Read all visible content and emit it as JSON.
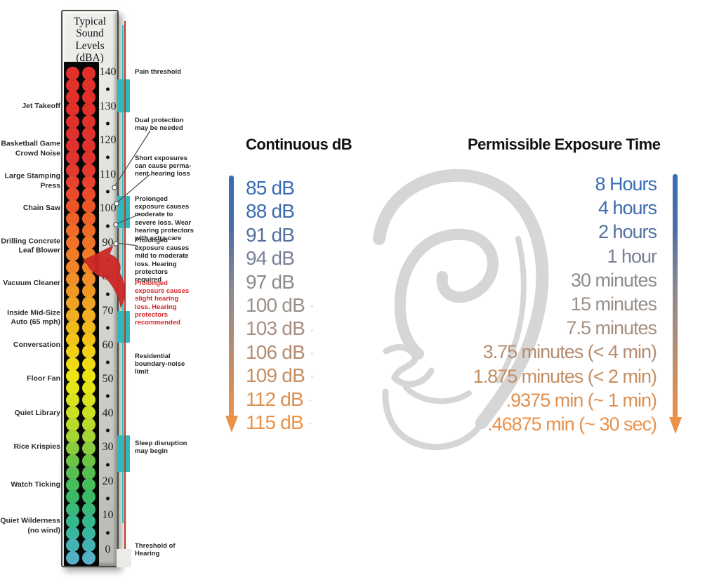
{
  "page_background": "#ffffff",
  "thermometer": {
    "title_lines": [
      "Typical",
      "Sound",
      "Levels",
      "(dBA)"
    ],
    "scale_max": 140,
    "scale_min": 0,
    "scale_step": 10,
    "tick_labels": [
      "140",
      "130",
      "120",
      "110",
      "100",
      "90",
      "80",
      "70",
      "60",
      "50",
      "40",
      "30",
      "20",
      "10",
      "0"
    ],
    "left_labels": [
      {
        "text": "Jet Takeoff",
        "db": 130
      },
      {
        "text": "Basketball Game Crowd Noise",
        "db": 117.5
      },
      {
        "text": "Large Stamping Press",
        "db": 108
      },
      {
        "text": "Chain Saw",
        "db": 100
      },
      {
        "text": "Drilling Concrete Leaf Blower",
        "db": 89
      },
      {
        "text": "Vacuum Cleaner",
        "db": 78
      },
      {
        "text": "Inside Mid-Size Auto (65 mph)",
        "db": 68
      },
      {
        "text": "Conversation",
        "db": 60
      },
      {
        "text": "Floor Fan",
        "db": 50
      },
      {
        "text": "Quiet Library",
        "db": 40
      },
      {
        "text": "Rice Krispies",
        "db": 30
      },
      {
        "text": "Watch Ticking",
        "db": 19
      },
      {
        "text": "Quiet Wilderness (no wind)",
        "db": 7
      }
    ],
    "annotations": [
      {
        "text": "Pain threshold",
        "color": "#262626"
      },
      {
        "text": "Dual protection may be needed",
        "color": "#262626"
      },
      {
        "text": "Short exposures can cause perma-nent hearing loss",
        "color": "#262626"
      },
      {
        "text": "Prolonged exposure causes moderate to severe loss. Wear hearing protectors with extra care",
        "color": "#262626"
      },
      {
        "text": "Prolonged exposure causes mild to moderate loss. Hearing protectors required",
        "color": "#262626"
      },
      {
        "text": "Prolonged exposure causes slight hearing loss. Hearing protectors recommended",
        "color": "#d8262b"
      },
      {
        "text": "Residential boundary-noise limit",
        "color": "#262626"
      },
      {
        "text": "Sleep disruption may begin",
        "color": "#262626"
      },
      {
        "text": "Threshold of Hearing",
        "color": "#262626"
      }
    ],
    "dot_gradient_stops": [
      [
        0.0,
        "#e23029"
      ],
      [
        0.17,
        "#e03130"
      ],
      [
        0.24,
        "#e8472c"
      ],
      [
        0.32,
        "#ee6a26"
      ],
      [
        0.4,
        "#f08428"
      ],
      [
        0.47,
        "#f0a024"
      ],
      [
        0.53,
        "#f2bb1c"
      ],
      [
        0.58,
        "#f2d214"
      ],
      [
        0.63,
        "#eee612"
      ],
      [
        0.69,
        "#d2e220"
      ],
      [
        0.75,
        "#a6d434"
      ],
      [
        0.81,
        "#60c149"
      ],
      [
        0.87,
        "#3ab964"
      ],
      [
        0.93,
        "#35b88e"
      ],
      [
        0.97,
        "#3fb3ae"
      ],
      [
        1.0,
        "#55b0c6"
      ]
    ],
    "marker_color": "#2fb9bd",
    "line_teal": "#2fb9bd",
    "line_red": "#c0392f",
    "pointer_arrow_color": "#ce2727"
  },
  "continuous": {
    "heading": "Continuous dB",
    "rows": [
      {
        "label": "85 dB",
        "color": "#3a6db6",
        "dot": false
      },
      {
        "label": "88 dB",
        "color": "#3e6cad",
        "dot": false
      },
      {
        "label": "91 dB",
        "color": "#54719f",
        "dot": false
      },
      {
        "label": "94 dB",
        "color": "#7a8097",
        "dot": false
      },
      {
        "label": "97 dB",
        "color": "#8d8a90",
        "dot": false
      },
      {
        "label": "100 dB",
        "color": "#99918a",
        "dot": true
      },
      {
        "label": "103 dB",
        "color": "#a78f80",
        "dot": true
      },
      {
        "label": "106 dB",
        "color": "#b58c71",
        "dot": true
      },
      {
        "label": "109 dB",
        "color": "#c58e60",
        "dot": true
      },
      {
        "label": "112 dB",
        "color": "#db9053",
        "dot": true
      },
      {
        "label": "115 dB",
        "color": "#ec9148",
        "dot": true
      }
    ]
  },
  "exposure": {
    "heading": "Permissible Exposure Time",
    "rows": [
      {
        "label": "8 Hours",
        "color": "#3a6db6"
      },
      {
        "label": "4 hours",
        "color": "#3e6cad"
      },
      {
        "label": "2 hours",
        "color": "#54719f"
      },
      {
        "label": "1 hour",
        "color": "#7a8097"
      },
      {
        "label": "30 minutes",
        "color": "#8d8a90"
      },
      {
        "label": "15 minutes",
        "color": "#99918a"
      },
      {
        "label": "7.5 minutes",
        "color": "#a78f80"
      },
      {
        "label": "3.75 minutes (< 4 min)",
        "color": "#b58c71"
      },
      {
        "label": "1.875 minutes (< 2 min)",
        "color": "#c58e60"
      },
      {
        "label": ".9375 min (~ 1 min)",
        "color": "#db9053"
      },
      {
        "label": ".46875 min (~ 30 sec)",
        "color": "#ec9148"
      }
    ]
  },
  "chart_data": {
    "type": "table",
    "columns": [
      "Continuous dB",
      "Permissible Exposure Time"
    ],
    "rows": [
      [
        "85 dB",
        "8 Hours"
      ],
      [
        "88 dB",
        "4 hours"
      ],
      [
        "91 dB",
        "2 hours"
      ],
      [
        "94 dB",
        "1 hour"
      ],
      [
        "97 dB",
        "30 minutes"
      ],
      [
        "100 dB",
        "15 minutes"
      ],
      [
        "103 dB",
        "7.5 minutes"
      ],
      [
        "106 dB",
        "3.75 minutes (< 4 min)"
      ],
      [
        "109 dB",
        "1.875 minutes (< 2 min)"
      ],
      [
        "112 dB",
        ".9375 min (~ 1 min)"
      ],
      [
        "115 dB",
        ".46875 min (~ 30 sec)"
      ]
    ]
  }
}
